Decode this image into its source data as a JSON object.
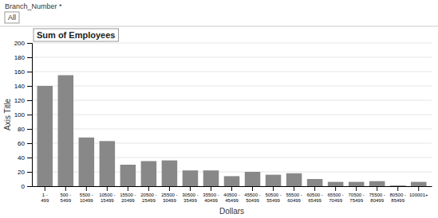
{
  "chart_data": {
    "type": "bar",
    "title": "Sum of Employees",
    "xlabel": "Dollars",
    "ylabel": "Axis Title",
    "annotations": [
      "Branch_Number *",
      "All"
    ],
    "categories": [
      "1 -\n499",
      "500 -\n5499",
      "5500 -\n10499",
      "10500 -\n15499",
      "15500 -\n20499",
      "20500 -\n25499",
      "25500 -\n30499",
      "30500 -\n35499",
      "35500 -\n40499",
      "40500 -\n45499",
      "45500 -\n50499",
      "50500 -\n55499",
      "55500 -\n60499",
      "60500 -\n65499",
      "65500 -\n70499",
      "70500 -\n75499",
      "75500 -\n80499",
      "80500 -\n85499",
      "100001+"
    ],
    "values": [
      140,
      155,
      68,
      63,
      30,
      35,
      36,
      22,
      22,
      14,
      20,
      16,
      18,
      10,
      6,
      6,
      7,
      1,
      6
    ],
    "color": "#888888",
    "ylim": [
      0,
      200
    ],
    "yticks": [
      0,
      20,
      40,
      60,
      80,
      100,
      120,
      140,
      160,
      180,
      200
    ],
    "grid": true
  }
}
